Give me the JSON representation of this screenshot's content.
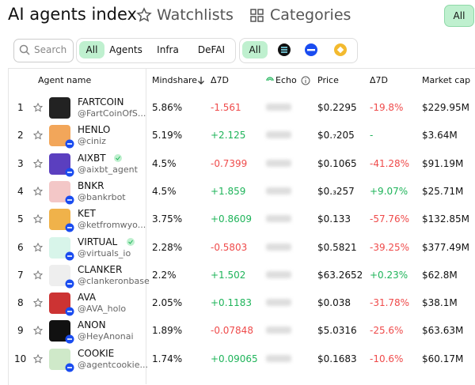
{
  "header": {
    "title": "AI agents index",
    "tabs": [
      "Watchlists",
      "Categories"
    ],
    "button": "All"
  },
  "filters": {
    "search": "Search",
    "categories": [
      "All",
      "Agents",
      "Infra",
      "DeFAI"
    ],
    "chains_all": "All"
  },
  "table": {
    "columns": [
      "Agent name",
      "Mindshare",
      "Δ7D",
      "Echo",
      "Price",
      "Δ7D",
      "Market cap"
    ],
    "rows": [
      {
        "rank": "1",
        "name": "FARTCOIN",
        "handle": "@FartCoinOfS...",
        "mindshare": "5.86%",
        "change": "-1.561",
        "price": "$0.2295",
        "price_change": "-19.8%",
        "market_cap": "$229.95M"
      },
      {
        "rank": "2",
        "name": "HENLO",
        "handle": "@ciniz",
        "mindshare": "5.19%",
        "change": "+2.125",
        "price": "$0.₇205",
        "price_change": "-",
        "market_cap": "$3.64M"
      },
      {
        "rank": "3",
        "name": "AIXBT",
        "handle": "@aixbt_agent",
        "mindshare": "4.5%",
        "change": "-0.7399",
        "price": "$0.1065",
        "price_change": "-41.28%",
        "market_cap": "$91.19M"
      },
      {
        "rank": "4",
        "name": "BNKR",
        "handle": "@bankrbot",
        "mindshare": "4.5%",
        "change": "+1.859",
        "price": "$0.₃257",
        "price_change": "+9.07%",
        "market_cap": "$25.71M"
      },
      {
        "rank": "5",
        "name": "KET",
        "handle": "@ketfromwyo...",
        "mindshare": "3.75%",
        "change": "+0.8609",
        "price": "$0.133",
        "price_change": "-57.76%",
        "market_cap": "$132.85M"
      },
      {
        "rank": "6",
        "name": "VIRTUAL",
        "handle": "@virtuals_io",
        "mindshare": "2.28%",
        "change": "-0.5803",
        "price": "$0.5821",
        "price_change": "-39.25%",
        "market_cap": "$377.49M"
      },
      {
        "rank": "7",
        "name": "CLANKER",
        "handle": "@clankeronbase",
        "mindshare": "2.2%",
        "change": "+1.502",
        "price": "$63.2652",
        "price_change": "+0.23%",
        "market_cap": "$62.8M"
      },
      {
        "rank": "8",
        "name": "AVA",
        "handle": "@AVA_holo",
        "mindshare": "2.05%",
        "change": "+0.1183",
        "price": "$0.038",
        "price_change": "-31.78%",
        "market_cap": "$38.1M"
      },
      {
        "rank": "9",
        "name": "ANON",
        "handle": "@HeyAnonai",
        "mindshare": "1.89%",
        "change": "-0.07848",
        "price": "$5.0316",
        "price_change": "-25.6%",
        "market_cap": "$63.63M"
      },
      {
        "rank": "10",
        "name": "COOKIE",
        "handle": "@agentcookie...",
        "mindshare": "1.74%",
        "change": "+0.09065",
        "price": "$0.1683",
        "price_change": "-10.6%",
        "market_cap": "$60.17M"
      }
    ]
  }
}
